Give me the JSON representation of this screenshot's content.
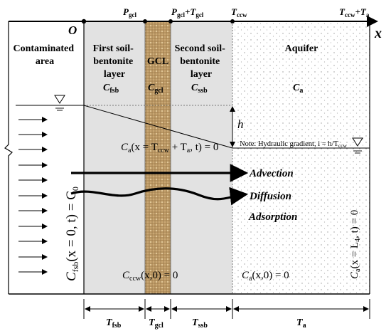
{
  "top_axis": {
    "origin": "O",
    "axis": "x",
    "marks": [
      {
        "main": "P",
        "sub": "gcl"
      },
      {
        "main": "P",
        "sub": "gcl",
        "main2": "+T",
        "sub2": "gcl"
      },
      {
        "main": "T",
        "sub": "ccw"
      },
      {
        "main": "T",
        "sub": "ccw",
        "main2": "+T",
        "sub2": "a"
      }
    ]
  },
  "regions": {
    "contaminated": {
      "line1": "Contaminated",
      "line2": "area"
    },
    "first_layer": {
      "line1": "First soil-",
      "line2": "bentonite",
      "line3": "layer",
      "conc": "C",
      "conc_sub": "fsb"
    },
    "gcl": {
      "line1": "GCL",
      "conc": "C",
      "conc_sub": "gcl"
    },
    "second_layer": {
      "line1": "Second soil-",
      "line2": "bentonite",
      "line3": "layer",
      "conc": "C",
      "conc_sub": "ssb"
    },
    "aquifer": {
      "line1": "Aquifer",
      "conc": "C",
      "conc_sub": "a"
    }
  },
  "head_label": "h",
  "note": "Note: Hydraulic gradient, i = h/T",
  "note_sub": "ccw",
  "boundary_conditions": {
    "aquifer_interface": "C",
    "aquifer_interface_sub": "a",
    "aquifer_interface_rest": "(x = T",
    "aquifer_interface_sub2": "ccw",
    "aquifer_interface_rest2": " + T",
    "aquifer_interface_sub3": "a",
    "aquifer_interface_rest3": ", t) = 0",
    "left": "C",
    "left_sub": "fsb",
    "left_rest": "(x = 0, t) = C",
    "left_sub2": "0",
    "right": "C",
    "right_sub": "a",
    "right_rest": "(x = L",
    "right_sub2": "4",
    "right_rest2": ", t) = 0"
  },
  "initial_conditions": {
    "ccw": "C",
    "ccw_sub": "ccw",
    "ccw_rest": "(x,0) = 0",
    "aquifer": "C",
    "aquifer_sub": "a",
    "aquifer_rest": "(x,0) = 0"
  },
  "processes": {
    "advection": "Advection",
    "diffusion": "Diffusion",
    "adsorption": "Adsorption"
  },
  "dimensions": [
    {
      "main": "T",
      "sub": "fsb"
    },
    {
      "main": "T",
      "sub": "gcl"
    },
    {
      "main": "T",
      "sub": "ssb"
    },
    {
      "main": "T",
      "sub": "a"
    }
  ],
  "colors": {
    "soil_fill": "#e2e2e2",
    "gcl_fill": "#c9a672",
    "gcl_weave": "#8a6a3e",
    "aquifer_dot": "#9a9a9a",
    "line": "#000000"
  }
}
